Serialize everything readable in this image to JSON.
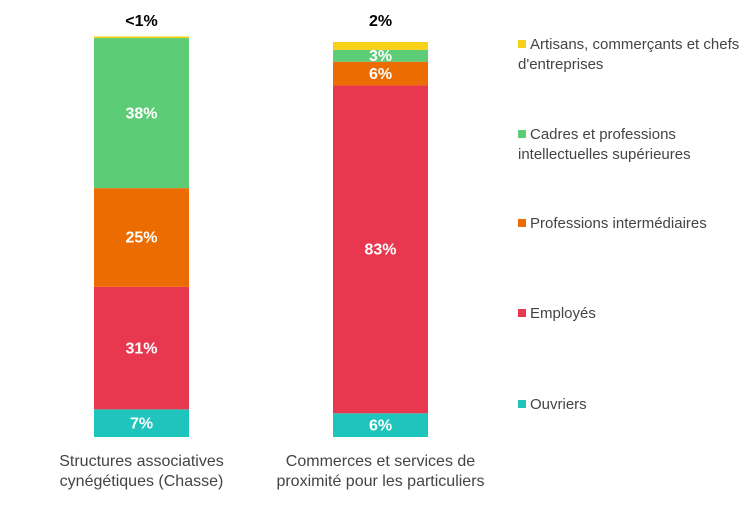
{
  "chart_data": {
    "type": "stacked_bar",
    "categories": [
      "Structures associatives cynégétiques (Chasse)",
      "Commerces et services de proximité pour les particuliers"
    ],
    "series": [
      {
        "name": "Ouvriers",
        "color": "#1fc4bc",
        "values": [
          7,
          6
        ],
        "value_labels": [
          "7%",
          "6%"
        ]
      },
      {
        "name": "Employés",
        "color": "#e8384f",
        "values": [
          31,
          83
        ],
        "value_labels": [
          "31%",
          "83%"
        ]
      },
      {
        "name": "Professions intermédiaires",
        "color": "#ed6c02",
        "values": [
          25,
          6
        ],
        "value_labels": [
          "25%",
          "6%"
        ]
      },
      {
        "name": "Cadres et professions intellectuelles supérieures",
        "color": "#5dcc77",
        "values": [
          38,
          3
        ],
        "value_labels": [
          "38%",
          "3%"
        ]
      },
      {
        "name": "Artisans, commerçants et chefs d'entreprises",
        "color": "#f7d117",
        "values": [
          0.4,
          2
        ],
        "value_labels": [
          "<1%",
          "2%"
        ]
      }
    ]
  }
}
